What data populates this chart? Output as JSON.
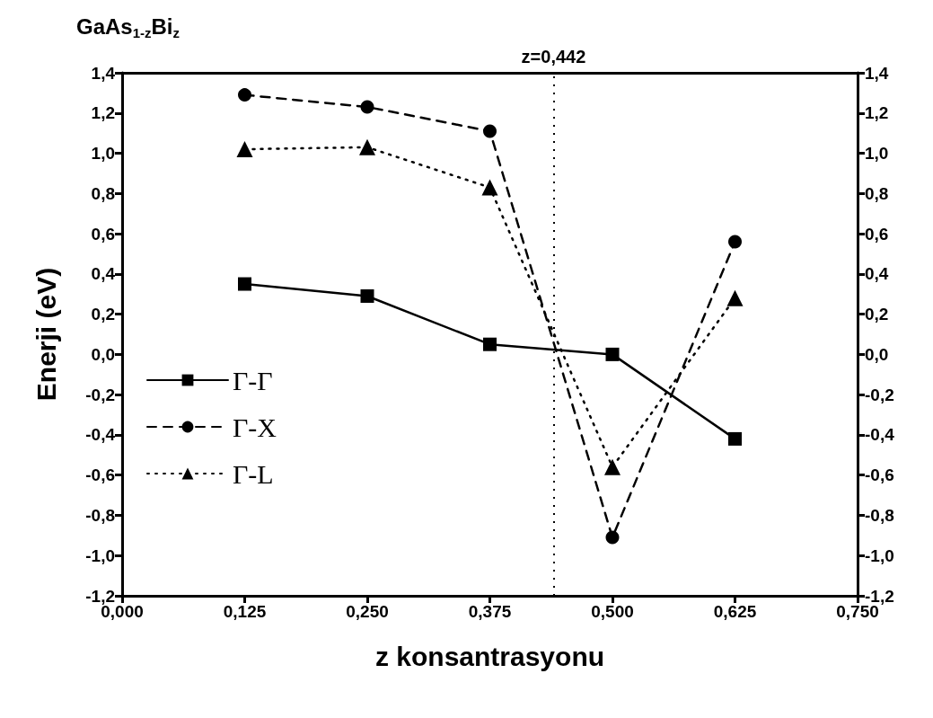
{
  "chart_data": {
    "type": "line",
    "title": "GaAs$_{1-z}$Bi$_{z}$",
    "xlabel": "z konsantrasyonu",
    "ylabel": "Enerji (eV)",
    "x": [
      0.125,
      0.25,
      0.375,
      0.5,
      0.625
    ],
    "series": [
      {
        "name": "Γ-Γ",
        "color": "#000000",
        "marker": "square",
        "line_style": "solid",
        "values": [
          0.35,
          0.29,
          0.05,
          0.0,
          -0.42
        ]
      },
      {
        "name": "Γ-X",
        "color": "#000000",
        "marker": "circle",
        "line_style": "dashed",
        "values": [
          1.29,
          1.23,
          1.11,
          -0.91,
          0.56
        ]
      },
      {
        "name": "Γ-L",
        "color": "#000000",
        "marker": "triangle",
        "line_style": "dotted",
        "values": [
          1.02,
          1.03,
          0.83,
          -0.56,
          0.28
        ]
      }
    ],
    "xlim": [
      0,
      0.75
    ],
    "xticks": [
      {
        "value": 0,
        "label": "0,000"
      },
      {
        "value": 0.125,
        "label": "0,125"
      },
      {
        "value": 0.25,
        "label": "0,250"
      },
      {
        "value": 0.375,
        "label": "0,375"
      },
      {
        "value": 0.5,
        "label": "0,500"
      },
      {
        "value": 0.625,
        "label": "0,625"
      },
      {
        "value": 0.75,
        "label": "0,750"
      }
    ],
    "ylim": [
      -1.2,
      1.4
    ],
    "yticks": [
      {
        "value": -1.2,
        "label": "-1,2"
      },
      {
        "value": -1.0,
        "label": "-1,0"
      },
      {
        "value": -0.8,
        "label": "-0,8"
      },
      {
        "value": -0.6,
        "label": "-0,6"
      },
      {
        "value": -0.4,
        "label": "-0,4"
      },
      {
        "value": -0.2,
        "label": "-0,2"
      },
      {
        "value": 0,
        "label": "0,0"
      },
      {
        "value": 0.2,
        "label": "0,2"
      },
      {
        "value": 0.4,
        "label": "0,4"
      },
      {
        "value": 0.6,
        "label": "0,6"
      },
      {
        "value": 0.8,
        "label": "0,8"
      },
      {
        "value": 1.0,
        "label": "1,0"
      },
      {
        "value": 1.2,
        "label": "1,2"
      },
      {
        "value": 1.4,
        "label": "1,4"
      }
    ],
    "y2lim": [
      -1.2,
      1.4
    ],
    "y2ticks": [
      {
        "value": -1.2,
        "label": "-1,2"
      },
      {
        "value": -1.0,
        "label": "-1,0"
      },
      {
        "value": -0.8,
        "label": "-0,8"
      },
      {
        "value": -0.6,
        "label": "-0,6"
      },
      {
        "value": -0.4,
        "label": "-0,4"
      },
      {
        "value": -0.2,
        "label": "-0,2"
      },
      {
        "value": 0,
        "label": "0,0"
      },
      {
        "value": 0.2,
        "label": "0,2"
      },
      {
        "value": 0.4,
        "label": "0,4"
      },
      {
        "value": 0.6,
        "label": "0,6"
      },
      {
        "value": 0.8,
        "label": "0,8"
      },
      {
        "value": 1.0,
        "label": "1,0"
      },
      {
        "value": 1.2,
        "label": "1,2"
      },
      {
        "value": 1.4,
        "label": "1,4"
      }
    ],
    "ref_lines": [
      {
        "axis": "x",
        "value": 0.442,
        "label": "z=0,442",
        "line_style": "dotted"
      }
    ],
    "grid": false,
    "legend": "left"
  }
}
